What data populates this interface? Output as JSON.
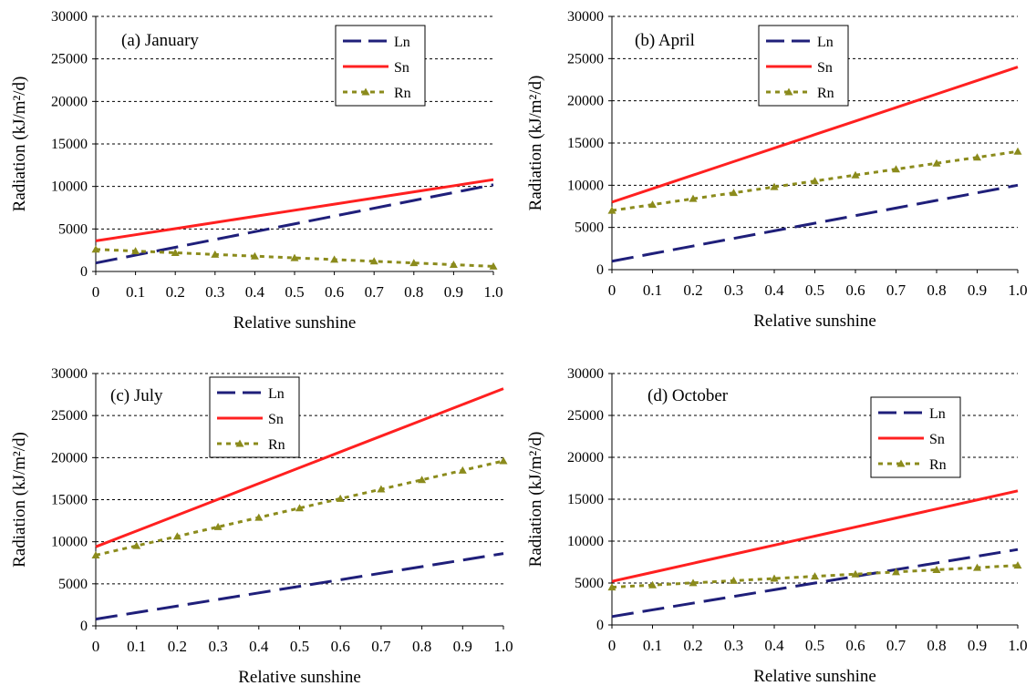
{
  "chart_data": [
    {
      "type": "line",
      "title": "(a) January",
      "xlabel": "Relative sunshine",
      "ylabel": "Radiation (kJ/m²/d)",
      "x_ticks": [
        "0",
        "0.1",
        "0.2",
        "0.3",
        "0.4",
        "0.5",
        "0.6",
        "0.7",
        "0.8",
        "0.9",
        "1.0"
      ],
      "y_ticks": [
        "0",
        "5000",
        "10000",
        "15000",
        "20000",
        "25000",
        "30000"
      ],
      "x": [
        0,
        0.1,
        0.2,
        0.3,
        0.4,
        0.5,
        0.6,
        0.7,
        0.8,
        0.9,
        1.0
      ],
      "xlim": [
        0,
        1
      ],
      "ylim": [
        0,
        30000
      ],
      "grid": "horizontal dashed",
      "legend_position": "top-right",
      "series": [
        {
          "name": "Ln",
          "color": "#1f1f7a",
          "style": "dashed",
          "values": [
            1000,
            1920,
            2840,
            3760,
            4680,
            5600,
            6520,
            7440,
            8360,
            9280,
            10200
          ]
        },
        {
          "name": "Sn",
          "color": "#ff2020",
          "style": "solid",
          "values": [
            3600,
            4320,
            5040,
            5760,
            6480,
            7200,
            7920,
            8640,
            9360,
            10080,
            10800
          ]
        },
        {
          "name": "Rn",
          "color": "#8b8b1c",
          "style": "dotted-triangle",
          "values": [
            2600,
            2400,
            2200,
            2000,
            1800,
            1600,
            1400,
            1200,
            1000,
            800,
            600
          ]
        }
      ]
    },
    {
      "type": "line",
      "title": "(b) April",
      "xlabel": "Relative sunshine",
      "ylabel": "Radiation (kJ/m²/d)",
      "x_ticks": [
        "0",
        "0.1",
        "0.2",
        "0.3",
        "0.4",
        "0.5",
        "0.6",
        "0.7",
        "0.8",
        "0.9",
        "1.0"
      ],
      "y_ticks": [
        "0",
        "5000",
        "10000",
        "15000",
        "20000",
        "25000",
        "30000"
      ],
      "x": [
        0,
        0.1,
        0.2,
        0.3,
        0.4,
        0.5,
        0.6,
        0.7,
        0.8,
        0.9,
        1.0
      ],
      "xlim": [
        0,
        1
      ],
      "ylim": [
        0,
        30000
      ],
      "grid": "horizontal dashed",
      "legend_position": "top-center",
      "series": [
        {
          "name": "Ln",
          "color": "#1f1f7a",
          "style": "dashed",
          "values": [
            1000,
            1900,
            2800,
            3700,
            4600,
            5500,
            6400,
            7300,
            8200,
            9100,
            10000
          ]
        },
        {
          "name": "Sn",
          "color": "#ff2020",
          "style": "solid",
          "values": [
            8000,
            9600,
            11200,
            12800,
            14400,
            16000,
            17600,
            19200,
            20800,
            22400,
            24000
          ]
        },
        {
          "name": "Rn",
          "color": "#8b8b1c",
          "style": "dotted-triangle",
          "values": [
            7000,
            7700,
            8400,
            9100,
            9800,
            10500,
            11200,
            11900,
            12600,
            13300,
            14000
          ]
        }
      ]
    },
    {
      "type": "line",
      "title": "(c) July",
      "xlabel": "Relative sunshine",
      "ylabel": "Radiation (kJ/m²/d)",
      "x_ticks": [
        "0",
        "0.1",
        "0.2",
        "0.3",
        "0.4",
        "0.5",
        "0.6",
        "0.7",
        "0.8",
        "0.9",
        "1.0"
      ],
      "y_ticks": [
        "0",
        "5000",
        "10000",
        "15000",
        "20000",
        "25000",
        "30000"
      ],
      "x": [
        0,
        0.1,
        0.2,
        0.3,
        0.4,
        0.5,
        0.6,
        0.7,
        0.8,
        0.9,
        1.0
      ],
      "xlim": [
        0,
        1
      ],
      "ylim": [
        0,
        30000
      ],
      "grid": "horizontal dashed",
      "legend_position": "top-left",
      "series": [
        {
          "name": "Ln",
          "color": "#1f1f7a",
          "style": "dashed",
          "values": [
            800,
            1580,
            2360,
            3140,
            3920,
            4700,
            5480,
            6260,
            7040,
            7820,
            8600
          ]
        },
        {
          "name": "Sn",
          "color": "#ff2020",
          "style": "solid",
          "values": [
            9400,
            11280,
            13160,
            15040,
            16920,
            18800,
            20680,
            22560,
            24440,
            26320,
            28200
          ]
        },
        {
          "name": "Rn",
          "color": "#8b8b1c",
          "style": "dotted-triangle",
          "values": [
            8400,
            9520,
            10640,
            11760,
            12880,
            14000,
            15120,
            16240,
            17360,
            18480,
            19600
          ]
        }
      ]
    },
    {
      "type": "line",
      "title": "(d) October",
      "xlabel": "Relative sunshine",
      "ylabel": "Radiation (kJ/m²/d)",
      "x_ticks": [
        "0",
        "0.1",
        "0.2",
        "0.3",
        "0.4",
        "0.5",
        "0.6",
        "0.7",
        "0.8",
        "0.9",
        "1.0"
      ],
      "y_ticks": [
        "0",
        "5000",
        "10000",
        "15000",
        "20000",
        "25000",
        "30000"
      ],
      "x": [
        0,
        0.1,
        0.2,
        0.3,
        0.4,
        0.5,
        0.6,
        0.7,
        0.8,
        0.9,
        1.0
      ],
      "xlim": [
        0,
        1
      ],
      "ylim": [
        0,
        30000
      ],
      "grid": "horizontal dashed",
      "legend_position": "upper-right",
      "series": [
        {
          "name": "Ln",
          "color": "#1f1f7a",
          "style": "dashed",
          "values": [
            1000,
            1800,
            2600,
            3400,
            4200,
            5000,
            5800,
            6600,
            7400,
            8200,
            9000
          ]
        },
        {
          "name": "Sn",
          "color": "#ff2020",
          "style": "solid",
          "values": [
            5200,
            6280,
            7360,
            8440,
            9520,
            10600,
            11680,
            12760,
            13840,
            14920,
            16000
          ]
        },
        {
          "name": "Rn",
          "color": "#8b8b1c",
          "style": "dotted-triangle",
          "values": [
            4500,
            4760,
            5020,
            5280,
            5540,
            5800,
            6060,
            6320,
            6580,
            6840,
            7100
          ]
        }
      ]
    }
  ]
}
